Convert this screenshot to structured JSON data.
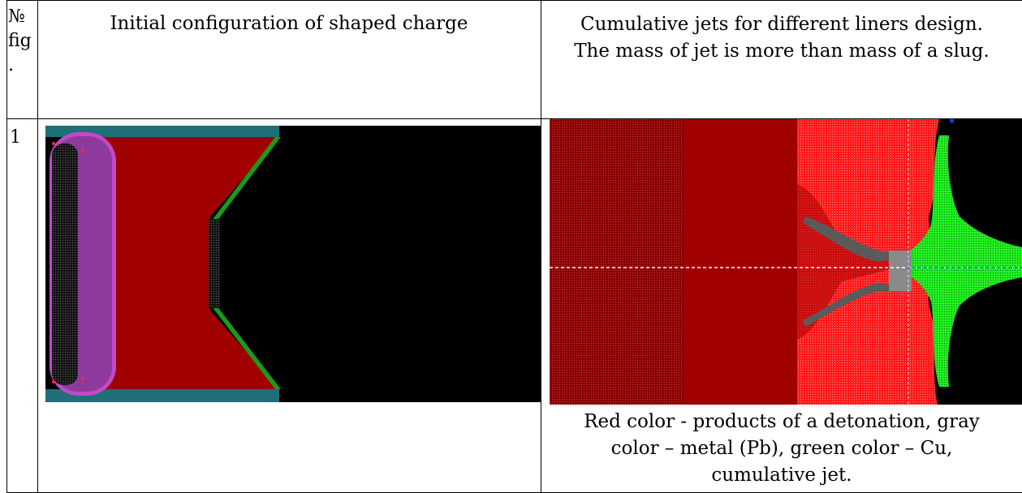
{
  "table": {
    "header": {
      "num_line1": "№",
      "num_line2": "fig",
      "num_line3": ".",
      "col2": "Initial configuration of shaped charge",
      "col3_line1": "Cumulative jets for different liners design.",
      "col3_line2": "The mass of jet is more than mass of a slug."
    },
    "rows": [
      {
        "number": "1",
        "caption_line1": "Red color - products of a detonation, gray",
        "caption_line2": "color – metal (Pb), green color – Cu,",
        "caption_line3": "cumulative jet."
      }
    ]
  },
  "colors": {
    "detonation_red": "#a00000",
    "bright_red": "#ff1a1a",
    "metal_gray": "#5a5a5a",
    "copper_green": "#22ee22",
    "liner_green": "#1a9a1a",
    "casing_teal": "#1f6f78",
    "explosive_purple": "#9a3fa6"
  }
}
